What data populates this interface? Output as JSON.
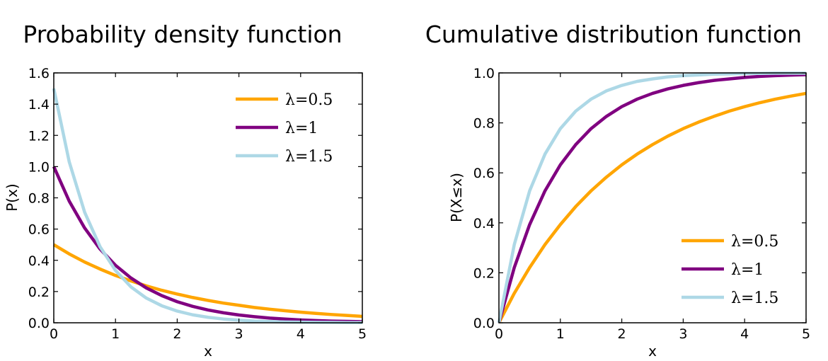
{
  "chart_data": [
    {
      "type": "line",
      "title": "Probability density function",
      "xlabel": "x",
      "ylabel": "P(x)",
      "xlim": [
        0,
        5
      ],
      "ylim": [
        0,
        1.6
      ],
      "xticks": [
        "0",
        "1",
        "2",
        "3",
        "4",
        "5"
      ],
      "yticks": [
        "0.0",
        "0.2",
        "0.4",
        "0.6",
        "0.8",
        "1.0",
        "1.2",
        "1.4",
        "1.6"
      ],
      "grid": false,
      "legend_position": "top-right",
      "x": [
        0,
        0.25,
        0.5,
        0.75,
        1,
        1.25,
        1.5,
        1.75,
        2,
        2.25,
        2.5,
        2.75,
        3,
        3.25,
        3.5,
        3.75,
        4,
        4.25,
        4.5,
        4.75,
        5
      ],
      "series": [
        {
          "name": "λ=0.5",
          "color": "#FFA500",
          "values": [
            0.5,
            0.441,
            0.389,
            0.344,
            0.303,
            0.268,
            0.236,
            0.208,
            0.184,
            0.162,
            0.143,
            0.126,
            0.112,
            0.098,
            0.087,
            0.077,
            0.068,
            0.06,
            0.053,
            0.047,
            0.041
          ]
        },
        {
          "name": "λ=1",
          "color": "#800080",
          "values": [
            1.0,
            0.779,
            0.607,
            0.472,
            0.368,
            0.287,
            0.223,
            0.174,
            0.135,
            0.105,
            0.082,
            0.064,
            0.05,
            0.039,
            0.03,
            0.024,
            0.018,
            0.014,
            0.011,
            0.009,
            0.007
          ]
        },
        {
          "name": "λ=1.5",
          "color": "#ADD8E6",
          "values": [
            1.5,
            1.031,
            0.708,
            0.487,
            0.335,
            0.23,
            0.158,
            0.109,
            0.075,
            0.051,
            0.035,
            0.024,
            0.017,
            0.011,
            0.008,
            0.005,
            0.004,
            0.003,
            0.002,
            0.001,
            0.001
          ]
        }
      ]
    },
    {
      "type": "line",
      "title": "Cumulative distribution function",
      "xlabel": "x",
      "ylabel": "P(X≤x)",
      "xlim": [
        0,
        5
      ],
      "ylim": [
        0,
        1.0
      ],
      "xticks": [
        "0",
        "1",
        "2",
        "3",
        "4",
        "5"
      ],
      "yticks": [
        "0.0",
        "0.2",
        "0.4",
        "0.6",
        "0.8",
        "1.0"
      ],
      "grid": false,
      "legend_position": "bottom-right",
      "x": [
        0,
        0.25,
        0.5,
        0.75,
        1,
        1.25,
        1.5,
        1.75,
        2,
        2.25,
        2.5,
        2.75,
        3,
        3.25,
        3.5,
        3.75,
        4,
        4.25,
        4.5,
        4.75,
        5
      ],
      "series": [
        {
          "name": "λ=0.5",
          "color": "#FFA500",
          "values": [
            0.0,
            0.118,
            0.221,
            0.313,
            0.393,
            0.465,
            0.528,
            0.583,
            0.632,
            0.675,
            0.713,
            0.747,
            0.777,
            0.803,
            0.826,
            0.847,
            0.865,
            0.881,
            0.895,
            0.907,
            0.918
          ]
        },
        {
          "name": "λ=1",
          "color": "#800080",
          "values": [
            0.0,
            0.221,
            0.393,
            0.528,
            0.632,
            0.713,
            0.777,
            0.826,
            0.865,
            0.895,
            0.918,
            0.936,
            0.95,
            0.961,
            0.97,
            0.976,
            0.982,
            0.986,
            0.989,
            0.991,
            0.993
          ]
        },
        {
          "name": "λ=1.5",
          "color": "#ADD8E6",
          "values": [
            0.0,
            0.313,
            0.528,
            0.675,
            0.777,
            0.847,
            0.895,
            0.928,
            0.95,
            0.966,
            0.976,
            0.984,
            0.989,
            0.992,
            0.995,
            0.996,
            0.998,
            0.998,
            0.999,
            0.999,
            0.999
          ]
        }
      ]
    }
  ]
}
